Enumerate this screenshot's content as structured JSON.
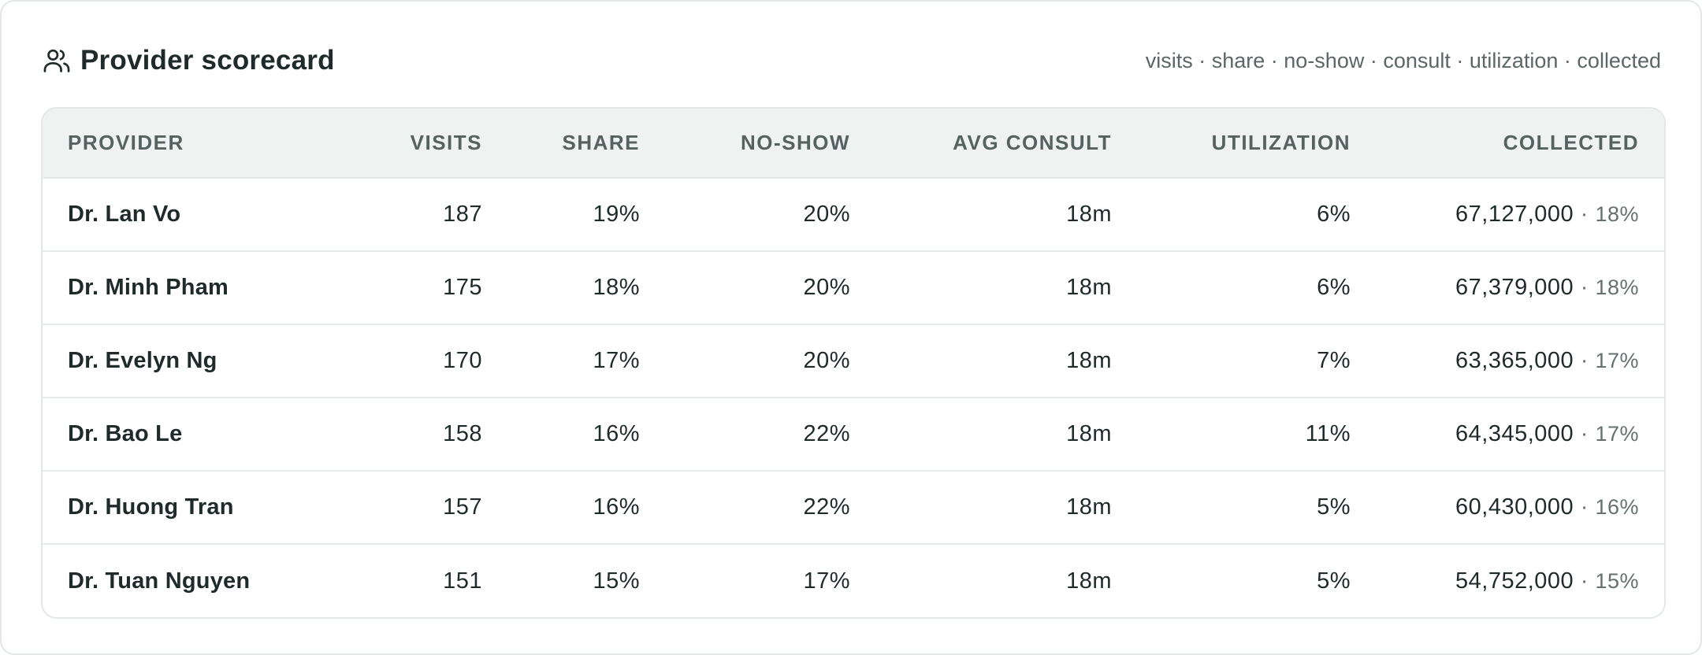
{
  "header": {
    "title": "Provider scorecard",
    "icon": "users-icon",
    "legend": "visits · share · no-show · consult · utilization · collected"
  },
  "table": {
    "columns": [
      "PROVIDER",
      "VISITS",
      "SHARE",
      "NO-SHOW",
      "AVG CONSULT",
      "UTILIZATION",
      "COLLECTED"
    ],
    "rows": [
      {
        "provider": "Dr. Lan Vo",
        "visits": "187",
        "share": "19%",
        "no_show": "20%",
        "avg_consult": "18m",
        "utilization": "6%",
        "collected": "67,127,000",
        "collected_pct": "18%"
      },
      {
        "provider": "Dr. Minh Pham",
        "visits": "175",
        "share": "18%",
        "no_show": "20%",
        "avg_consult": "18m",
        "utilization": "6%",
        "collected": "67,379,000",
        "collected_pct": "18%"
      },
      {
        "provider": "Dr. Evelyn Ng",
        "visits": "170",
        "share": "17%",
        "no_show": "20%",
        "avg_consult": "18m",
        "utilization": "7%",
        "collected": "63,365,000",
        "collected_pct": "17%"
      },
      {
        "provider": "Dr. Bao Le",
        "visits": "158",
        "share": "16%",
        "no_show": "22%",
        "avg_consult": "18m",
        "utilization": "11%",
        "collected": "64,345,000",
        "collected_pct": "17%"
      },
      {
        "provider": "Dr. Huong Tran",
        "visits": "157",
        "share": "16%",
        "no_show": "22%",
        "avg_consult": "18m",
        "utilization": "5%",
        "collected": "60,430,000",
        "collected_pct": "16%"
      },
      {
        "provider": "Dr. Tuan Nguyen",
        "visits": "151",
        "share": "15%",
        "no_show": "17%",
        "avg_consult": "18m",
        "utilization": "5%",
        "collected": "54,752,000",
        "collected_pct": "15%"
      }
    ]
  },
  "colors": {
    "header_bg": "#eef2f1",
    "border": "#e3e8e7",
    "text": "#1f2a2a",
    "muted": "#66716f"
  }
}
